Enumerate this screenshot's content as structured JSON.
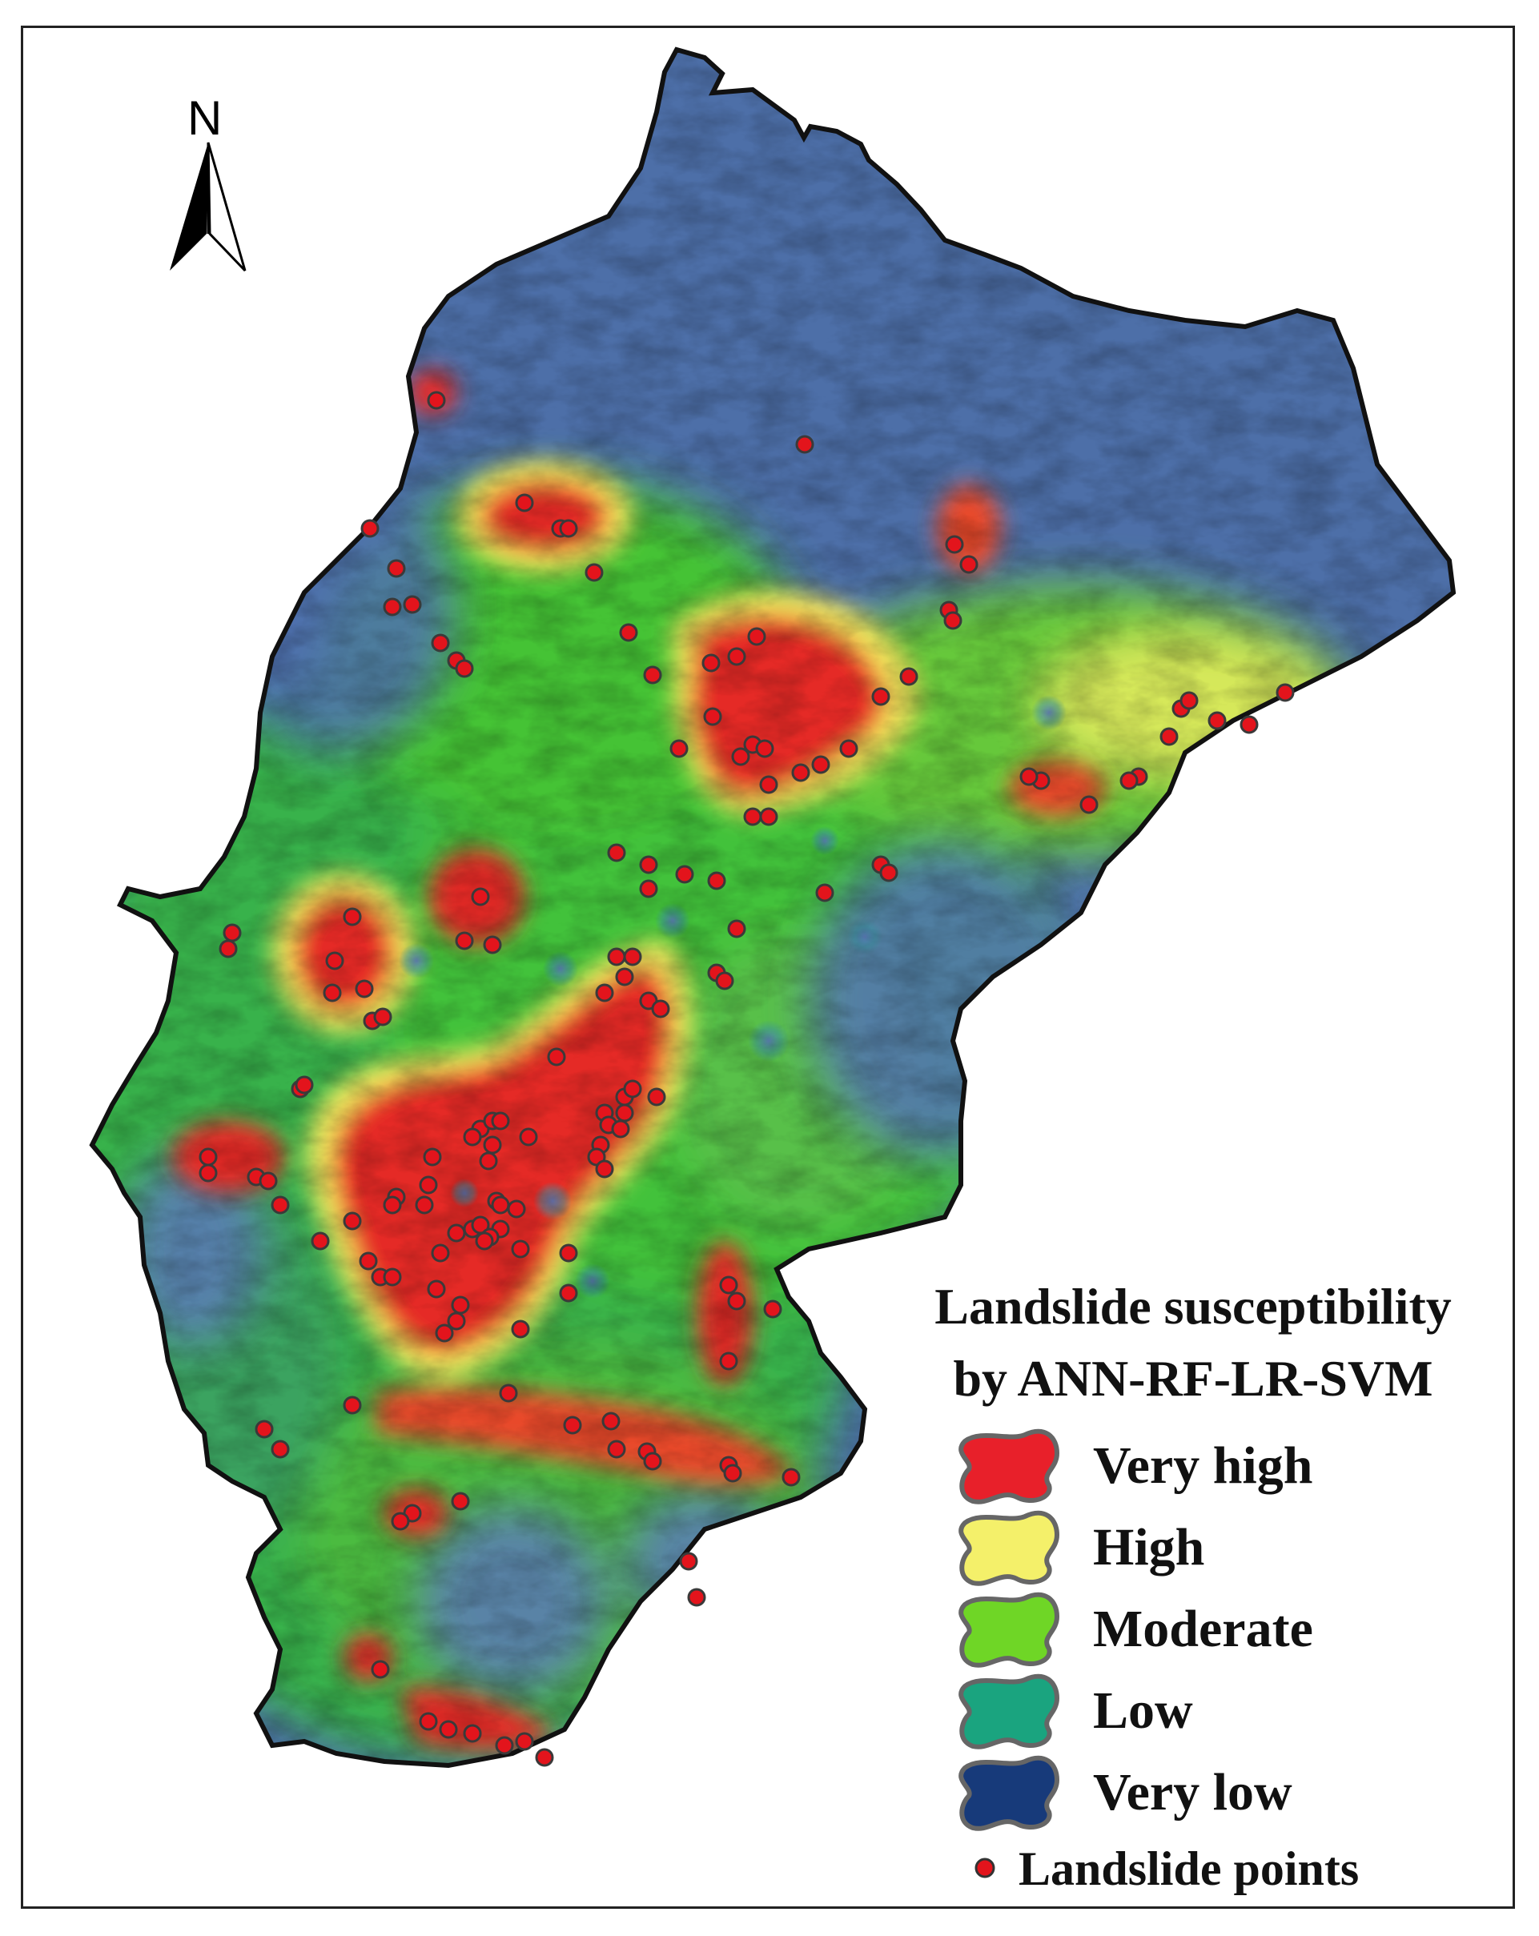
{
  "north_label": "N",
  "legend": {
    "title_line1": "Landslide susceptibility",
    "title_line2": "by ANN-RF-LR-SVM",
    "classes": [
      {
        "label": "Very high",
        "color": "#e8202a"
      },
      {
        "label": "High",
        "color": "#f4f06a"
      },
      {
        "label": "Moderate",
        "color": "#6fd626"
      },
      {
        "label": "Low",
        "color": "#1aa47f"
      },
      {
        "label": "Very low",
        "color": "#173a7a"
      }
    ],
    "points_label": "Landslide points",
    "point_color": "#e3141c"
  }
}
